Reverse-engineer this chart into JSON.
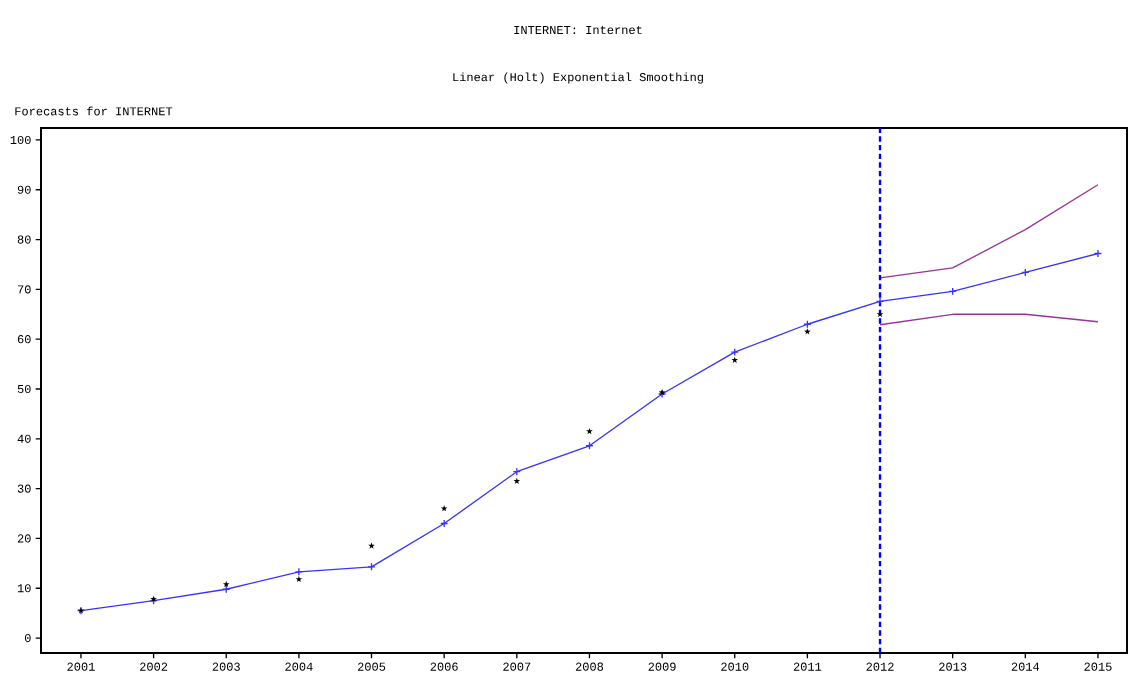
{
  "chart_data": {
    "type": "line",
    "title": "INTERNET: Internet",
    "subtitle": "Linear (Holt) Exponential Smoothing",
    "annotations": [
      "Forecasts for INTERNET"
    ],
    "xlim": [
      2000.45,
      2015.4
    ],
    "xticks": [
      2001,
      2002,
      2003,
      2004,
      2005,
      2006,
      2007,
      2008,
      2009,
      2010,
      2011,
      2012,
      2013,
      2014,
      2015
    ],
    "ylim": [
      -3,
      102.4
    ],
    "yticks": [
      0,
      10,
      20,
      30,
      40,
      50,
      60,
      70,
      80,
      90,
      100
    ],
    "grid": false,
    "series": [
      {
        "type": "scatter",
        "color": "#000000",
        "marker": "star",
        "x": [
          2001,
          2002,
          2003,
          2004,
          2005,
          2006,
          2007,
          2008,
          2009,
          2010,
          2011,
          2012
        ],
        "values": [
          5.5,
          7.8,
          10.8,
          11.8,
          18.5,
          26,
          31.5,
          41.5,
          49.3,
          55.8,
          61.5,
          65
        ]
      },
      {
        "color": "#3333ff",
        "marker": "cross",
        "x": [
          2001,
          2002,
          2003,
          2004,
          2005,
          2006,
          2007,
          2008,
          2009,
          2010,
          2011,
          2012,
          2013,
          2014,
          2015
        ],
        "values": [
          5.5,
          7.5,
          9.8,
          13.3,
          14.3,
          23,
          33.4,
          38.6,
          49,
          57.4,
          63,
          67.6,
          69.6,
          73.4,
          77.2
        ]
      },
      {
        "color": "#993399",
        "marker": "none",
        "x": [
          2012,
          2013,
          2014,
          2015
        ],
        "values": [
          72.3,
          74.3,
          82,
          91
        ]
      },
      {
        "color": "#993399",
        "marker": "none",
        "x": [
          2012,
          2013,
          2014,
          2015
        ],
        "values": [
          62.9,
          65,
          65,
          63.5
        ]
      }
    ],
    "ref_lines": [
      {
        "axis": "x",
        "value": 2012,
        "color": "#0000ff",
        "line_style": "dashed"
      }
    ]
  }
}
